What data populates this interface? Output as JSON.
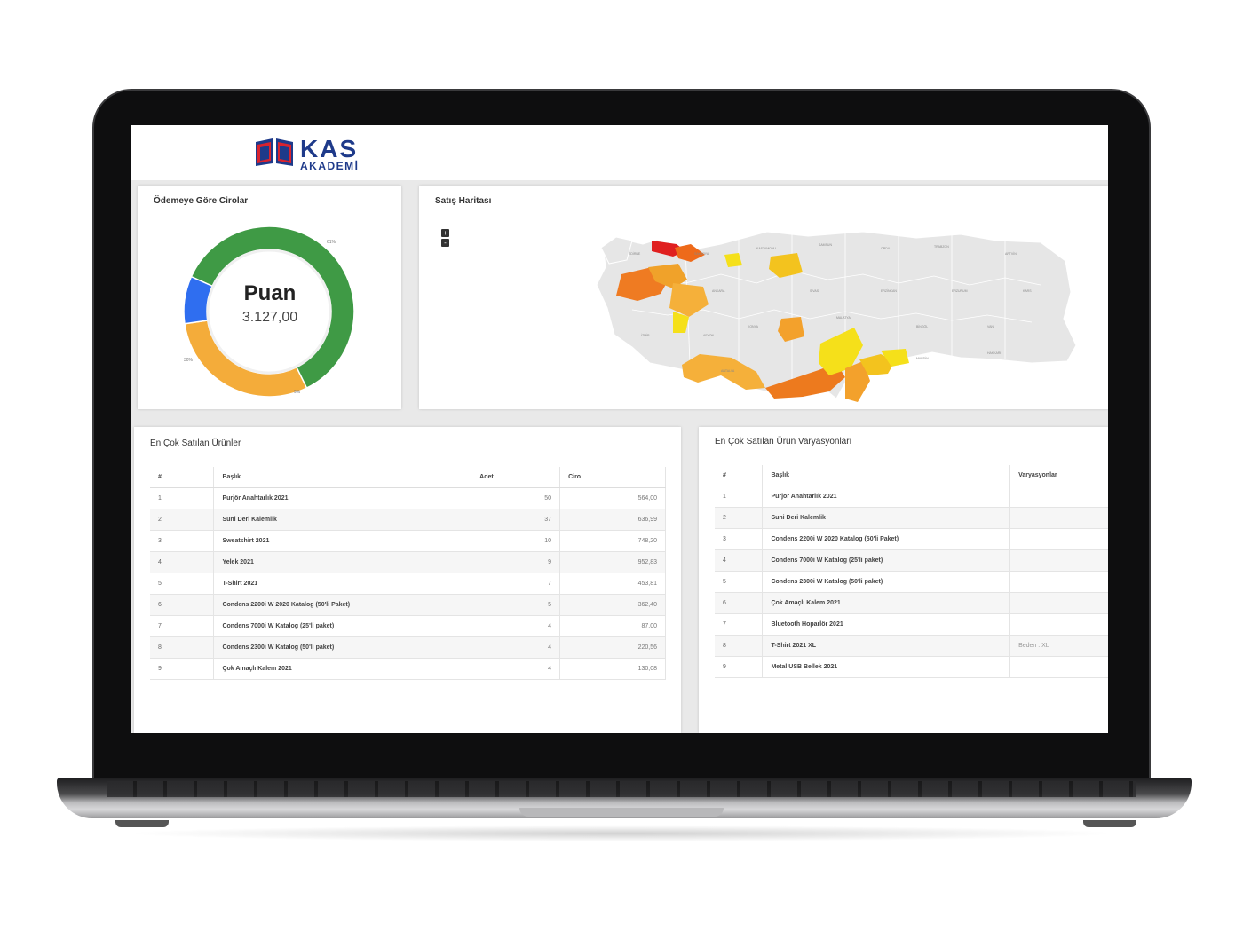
{
  "brand": {
    "name": "KAS",
    "sub": "AKADEMİ"
  },
  "revenue_card": {
    "title": "Ödemeye Göre Cirolar",
    "center_label": "Puan",
    "center_value": "3.127,00",
    "colors": {
      "green": "#3f9a45",
      "orange": "#f4ac3a",
      "blue": "#2f6ef0"
    },
    "segments": [
      {
        "label": "61%",
        "value": 61
      },
      {
        "label": "30%",
        "value": 30
      },
      {
        "label": "9%",
        "value": 9
      }
    ]
  },
  "map_card": {
    "title": "Satış Haritası",
    "zoom_in": "+",
    "zoom_out": "-"
  },
  "products_card": {
    "title": "En Çok Satılan Ürünler",
    "columns": [
      "#",
      "Başlık",
      "Adet",
      "Ciro"
    ],
    "rows": [
      [
        "1",
        "Purjör Anahtarlık 2021",
        "50",
        "564,00"
      ],
      [
        "2",
        "Suni Deri Kalemlik",
        "37",
        "636,99"
      ],
      [
        "3",
        "Sweatshirt 2021",
        "10",
        "748,20"
      ],
      [
        "4",
        "Yelek 2021",
        "9",
        "952,83"
      ],
      [
        "5",
        "T-Shirt 2021",
        "7",
        "453,81"
      ],
      [
        "6",
        "Condens 2200i W 2020 Katalog (50'li Paket)",
        "5",
        "362,40"
      ],
      [
        "7",
        "Condens 7000i W Katalog (25'li paket)",
        "4",
        "87,00"
      ],
      [
        "8",
        "Condens 2300i W Katalog (50'li paket)",
        "4",
        "220,56"
      ],
      [
        "9",
        "Çok Amaçlı Kalem 2021",
        "4",
        "130,08"
      ]
    ]
  },
  "variants_card": {
    "title": "En Çok Satılan Ürün Varyasyonları",
    "columns": [
      "#",
      "Başlık",
      "Varyasyonlar"
    ],
    "rows": [
      [
        "1",
        "Purjör Anahtarlık 2021",
        ""
      ],
      [
        "2",
        "Suni Deri Kalemlik",
        ""
      ],
      [
        "3",
        "Condens 2200i W 2020 Katalog (50'li Paket)",
        ""
      ],
      [
        "4",
        "Condens 7000i W Katalog (25'li paket)",
        ""
      ],
      [
        "5",
        "Condens 2300i W Katalog (50'li paket)",
        ""
      ],
      [
        "6",
        "Çok Amaçlı Kalem 2021",
        ""
      ],
      [
        "7",
        "Bluetooth Hoparlör 2021",
        ""
      ],
      [
        "8",
        "T-Shirt 2021 XL",
        "Beden : XL"
      ],
      [
        "9",
        "Metal USB Bellek 2021",
        ""
      ]
    ]
  }
}
